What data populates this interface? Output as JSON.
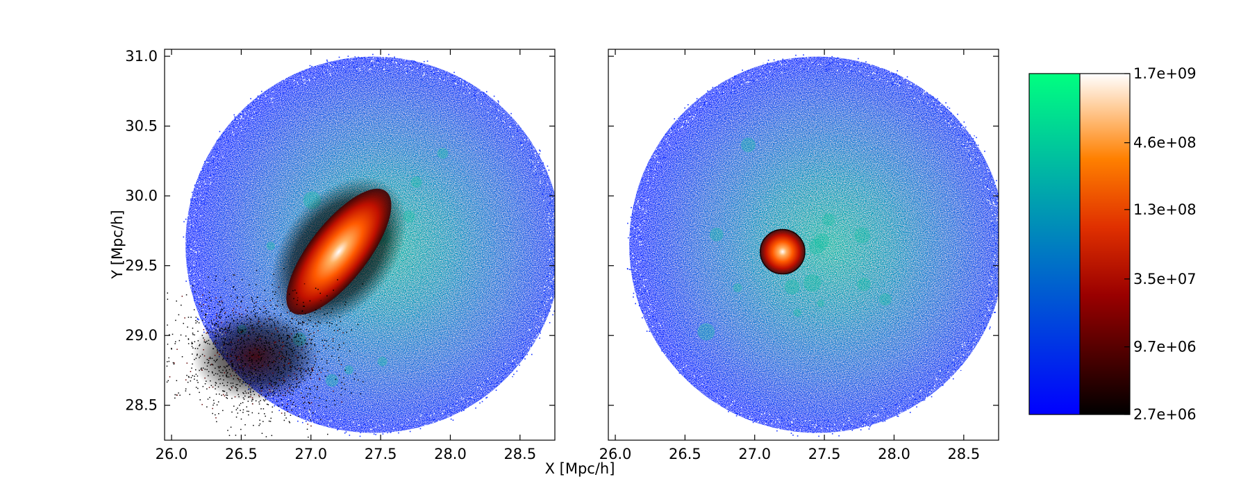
{
  "chart_data": [
    {
      "type": "heatmap",
      "panel": "left",
      "xlabel": "X [Mpc/h]",
      "ylabel": "Y [Mpc/h]",
      "xlim": [
        25.95,
        28.75
      ],
      "ylim": [
        28.25,
        31.05
      ],
      "x_ticks": [
        "26.0",
        "26.5",
        "27.0",
        "27.5",
        "28.0",
        "28.5"
      ],
      "y_ticks": [
        "28.5",
        "29.0",
        "29.5",
        "30.0",
        "30.5",
        "31.0"
      ],
      "x_tick_values": [
        26.0,
        26.5,
        27.0,
        27.5,
        28.0,
        28.5
      ],
      "y_tick_values": [
        28.5,
        29.0,
        29.5,
        30.0,
        30.5,
        31.0
      ],
      "regions": [
        {
          "kind": "sphere",
          "colormap": "green-blue",
          "center": [
            27.45,
            29.65
          ],
          "radius": 1.35
        },
        {
          "kind": "elongated-core",
          "colormap": "black-red-white",
          "center": [
            27.2,
            29.6
          ],
          "length": 1.1,
          "width": 0.38,
          "angle_deg": -52
        },
        {
          "kind": "stream",
          "colormap": "black-red-white",
          "center": [
            26.6,
            28.85
          ],
          "spread": [
            0.35,
            0.25
          ]
        }
      ]
    },
    {
      "type": "heatmap",
      "panel": "right",
      "xlabel": "",
      "ylabel": "",
      "xlim": [
        25.95,
        28.75
      ],
      "ylim": [
        28.25,
        31.05
      ],
      "x_ticks": [
        "26.0",
        "26.5",
        "27.0",
        "27.5",
        "28.0",
        "28.5"
      ],
      "x_tick_values": [
        26.0,
        26.5,
        27.0,
        27.5,
        28.0,
        28.5
      ],
      "regions": [
        {
          "kind": "sphere",
          "colormap": "green-blue",
          "center": [
            27.45,
            29.65
          ],
          "radius": 1.35
        },
        {
          "kind": "small-sphere",
          "colormap": "black-red-white",
          "center": [
            27.2,
            29.6
          ],
          "radius": 0.16
        }
      ]
    },
    {
      "type": "colorbar",
      "ticks": [
        "1.7e+09",
        "4.6e+08",
        "1.3e+08",
        "3.5e+07",
        "9.7e+06",
        "2.7e+06"
      ],
      "tick_values": [
        1700000000.0,
        460000000.0,
        130000000.0,
        35000000.0,
        9700000.0,
        2700000.0
      ],
      "scale": "log",
      "colormaps": {
        "green-blue": [
          "#0000ff",
          "#00ff80"
        ],
        "black-red-white": [
          "#000000",
          "#c00000",
          "#ff8000",
          "#ffffff"
        ]
      }
    }
  ]
}
